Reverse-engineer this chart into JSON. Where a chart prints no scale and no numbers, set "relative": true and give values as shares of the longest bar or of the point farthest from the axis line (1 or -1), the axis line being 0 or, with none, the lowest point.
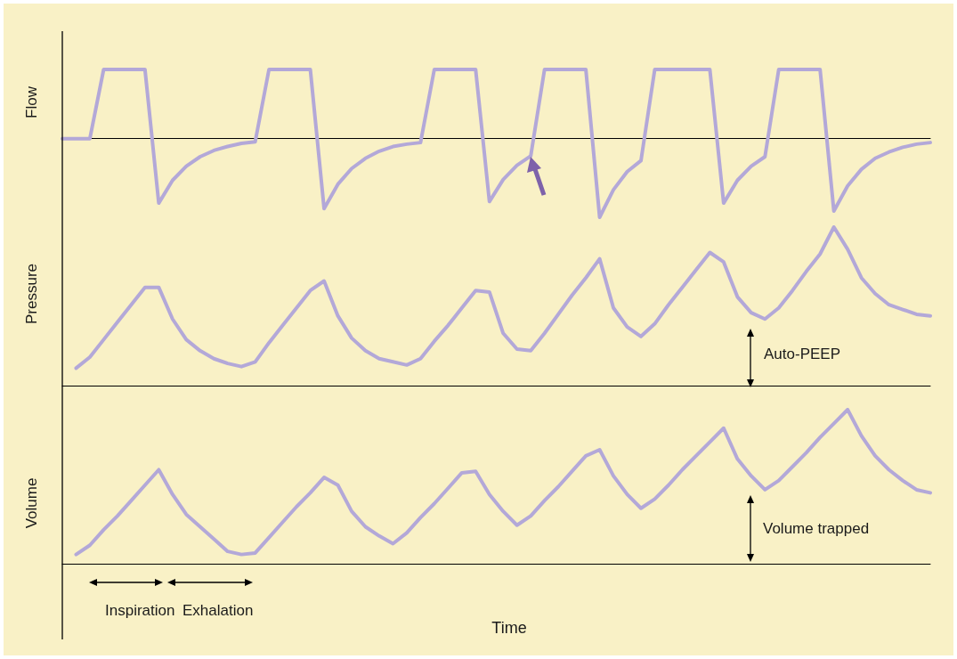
{
  "chart_data": [
    {
      "type": "line",
      "relative": true,
      "ylabel": "Flow",
      "marker": "none",
      "line_style": "solid",
      "categories": [
        null,
        null,
        null,
        null,
        null,
        null,
        null,
        null,
        null,
        null,
        null,
        null,
        null,
        null,
        null,
        null,
        null,
        null,
        null,
        null,
        null,
        null,
        null,
        null,
        null,
        null,
        null,
        null,
        null,
        null,
        null,
        null,
        null,
        null,
        null,
        null,
        null,
        null,
        null,
        null,
        null,
        null,
        null,
        null,
        null,
        null,
        null,
        null,
        null,
        null,
        null,
        null,
        null,
        null,
        null,
        null,
        null,
        null,
        null,
        null,
        null,
        null,
        null,
        null
      ],
      "series": [
        {
          "color": "#b3a8d8",
          "values": [
            0,
            0,
            0,
            0.88,
            0.88,
            0.88,
            0.88,
            -0.82,
            -0.53,
            -0.35,
            -0.23,
            -0.15,
            -0.1,
            -0.06,
            -0.04,
            0.88,
            0.88,
            0.88,
            0.88,
            -0.89,
            -0.58,
            -0.38,
            -0.25,
            -0.16,
            -0.1,
            -0.07,
            -0.05,
            0.88,
            0.88,
            0.88,
            0.88,
            -0.8,
            -0.52,
            -0.34,
            -0.22,
            0.88,
            0.88,
            0.88,
            0.88,
            -1,
            -0.65,
            -0.42,
            -0.28,
            0.88,
            0.88,
            0.88,
            0.88,
            0.88,
            -0.82,
            -0.53,
            -0.35,
            -0.23,
            0.88,
            0.88,
            0.88,
            0.88,
            -0.92,
            -0.6,
            -0.39,
            -0.25,
            -0.17,
            -0.11,
            -0.07,
            -0.05
          ]
        }
      ]
    },
    {
      "type": "line",
      "relative": true,
      "ylabel": "Pressure",
      "marker": "none",
      "line_style": "solid",
      "annotations": [
        "Auto-PEEP"
      ],
      "categories": [
        null,
        null,
        null,
        null,
        null,
        null,
        null,
        null,
        null,
        null,
        null,
        null,
        null,
        null,
        null,
        null,
        null,
        null,
        null,
        null,
        null,
        null,
        null,
        null,
        null,
        null,
        null,
        null,
        null,
        null,
        null,
        null,
        null,
        null,
        null,
        null,
        null,
        null,
        null,
        null,
        null,
        null,
        null,
        null,
        null,
        null,
        null,
        null,
        null,
        null,
        null,
        null,
        null,
        null,
        null,
        null,
        null,
        null,
        null,
        null,
        null,
        null,
        null,
        null
      ],
      "series": [
        {
          "color": "#b3a8d8",
          "values": [
            null,
            0.11,
            0.18,
            0.29,
            0.4,
            0.51,
            0.62,
            0.62,
            0.42,
            0.29,
            0.22,
            0.17,
            0.14,
            0.12,
            0.15,
            0.27,
            0.38,
            0.49,
            0.6,
            0.66,
            0.44,
            0.3,
            0.22,
            0.17,
            0.15,
            0.13,
            0.17,
            0.28,
            0.38,
            0.49,
            0.6,
            0.59,
            0.33,
            0.23,
            0.22,
            0.33,
            0.45,
            0.57,
            0.68,
            0.8,
            0.49,
            0.37,
            0.31,
            0.39,
            0.51,
            0.62,
            0.73,
            0.84,
            0.78,
            0.56,
            0.46,
            0.42,
            0.49,
            0.6,
            0.72,
            0.83,
            1,
            0.86,
            0.68,
            0.58,
            0.51,
            0.48,
            0.45,
            0.44
          ]
        }
      ]
    },
    {
      "type": "line",
      "relative": true,
      "ylabel": "Volume",
      "xlabel": "Time",
      "marker": "none",
      "line_style": "solid",
      "annotations": [
        "Volume trapped",
        "Inspiration",
        "Exhalation"
      ],
      "categories": [
        null,
        null,
        null,
        null,
        null,
        null,
        null,
        null,
        null,
        null,
        null,
        null,
        null,
        null,
        null,
        null,
        null,
        null,
        null,
        null,
        null,
        null,
        null,
        null,
        null,
        null,
        null,
        null,
        null,
        null,
        null,
        null,
        null,
        null,
        null,
        null,
        null,
        null,
        null,
        null,
        null,
        null,
        null,
        null,
        null,
        null,
        null,
        null,
        null,
        null,
        null,
        null,
        null,
        null,
        null,
        null,
        null,
        null,
        null,
        null,
        null,
        null,
        null,
        null
      ],
      "series": [
        {
          "color": "#b3a8d8",
          "values": [
            null,
            0.06,
            0.12,
            0.22,
            0.31,
            0.41,
            0.51,
            0.61,
            0.45,
            0.32,
            0.24,
            0.16,
            0.08,
            0.06,
            0.07,
            0.17,
            0.27,
            0.37,
            0.46,
            0.56,
            0.51,
            0.34,
            0.24,
            0.18,
            0.13,
            0.2,
            0.3,
            0.39,
            0.49,
            0.59,
            0.6,
            0.45,
            0.34,
            0.25,
            0.31,
            0.41,
            0.5,
            0.6,
            0.7,
            0.74,
            0.57,
            0.45,
            0.36,
            0.42,
            0.51,
            0.61,
            0.7,
            0.79,
            0.88,
            0.68,
            0.57,
            0.48,
            0.54,
            0.63,
            0.72,
            0.82,
            0.91,
            1,
            0.83,
            0.7,
            0.61,
            0.54,
            0.48,
            0.46
          ]
        }
      ]
    }
  ]
}
